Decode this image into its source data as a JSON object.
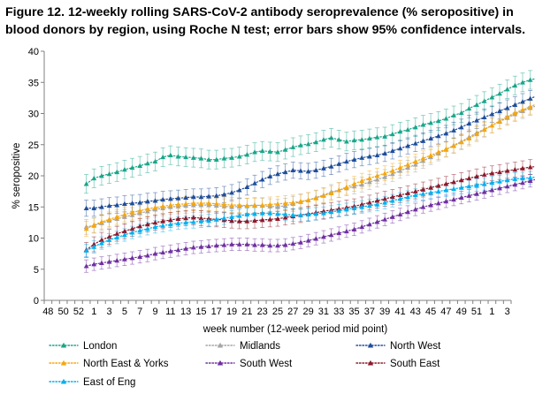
{
  "figure_title": "Figure 12. 12-weekly rolling SARS-CoV-2 antibody seroprevalence (% seropositive) in blood donors by region, using Roche N test; error bars show 95% confidence intervals.",
  "chart_data": {
    "type": "line",
    "xlabel": "week number  (12-week period mid point)",
    "ylabel": "% seropositive",
    "ylim": [
      0,
      40
    ],
    "yticks": [
      0,
      5,
      10,
      15,
      20,
      25,
      30,
      35,
      40
    ],
    "x_tick_labels": [
      "48",
      "50",
      "52",
      "1",
      "3",
      "5",
      "7",
      "9",
      "11",
      "13",
      "15",
      "17",
      "19",
      "21",
      "23",
      "25",
      "27",
      "29",
      "31",
      "33",
      "35",
      "37",
      "39",
      "41",
      "43",
      "45",
      "47",
      "49",
      "51",
      "1",
      "3"
    ],
    "x_positions_count": 61,
    "first_data_index": 5,
    "legend_position": "bottom",
    "grid": false,
    "error_bars": "95% confidence intervals",
    "series": [
      {
        "name": "London",
        "color": "#1aa68a",
        "marker": "triangle",
        "ci": 1.5,
        "values": [
          18.7,
          19.6,
          20.0,
          20.3,
          20.6,
          21.0,
          21.3,
          21.6,
          22.0,
          22.3,
          23.0,
          23.3,
          23.1,
          23.0,
          22.9,
          22.8,
          22.6,
          22.6,
          22.8,
          22.9,
          23.1,
          23.4,
          23.8,
          24.0,
          23.9,
          23.8,
          24.2,
          24.6,
          24.9,
          25.1,
          25.4,
          25.8,
          26.1,
          25.8,
          25.5,
          25.7,
          25.8,
          26.0,
          26.2,
          26.3,
          26.7,
          27.1,
          27.4,
          27.8,
          28.2,
          28.5,
          28.8,
          29.2,
          29.7,
          30.1,
          30.8,
          31.4,
          32.0,
          32.6,
          33.2,
          33.9,
          34.5,
          35.0,
          35.4,
          35.7,
          36.0
        ]
      },
      {
        "name": "Midlands",
        "color": "#a6a6a6",
        "marker": "triangle",
        "ci": 1.2,
        "values": [
          11.8,
          12.0,
          12.4,
          12.8,
          13.1,
          13.4,
          13.7,
          14.0,
          14.3,
          14.6,
          14.8,
          15.0,
          15.1,
          15.2,
          15.3,
          15.3,
          15.3,
          15.2,
          15.1,
          15.0,
          15.1,
          15.2,
          15.3,
          15.2,
          15.1,
          15.0,
          15.2,
          15.5,
          15.8,
          16.1,
          16.5,
          16.9,
          17.4,
          17.7,
          18.0,
          18.3,
          18.6,
          19.0,
          19.4,
          19.8,
          20.3,
          20.8,
          21.3,
          21.8,
          22.4,
          23.0,
          23.6,
          24.2,
          24.9,
          25.5,
          26.2,
          26.9,
          27.5,
          28.1,
          28.7,
          29.3,
          29.9,
          30.4,
          30.9,
          31.3,
          31.6
        ]
      },
      {
        "name": "North West",
        "color": "#1f4e9a",
        "marker": "triangle",
        "ci": 1.3,
        "values": [
          14.8,
          14.8,
          15.0,
          15.2,
          15.3,
          15.5,
          15.6,
          15.7,
          15.9,
          16.0,
          16.2,
          16.3,
          16.4,
          16.5,
          16.6,
          16.6,
          16.7,
          16.8,
          17.0,
          17.3,
          17.7,
          18.2,
          18.8,
          19.4,
          19.9,
          20.3,
          20.6,
          20.9,
          20.8,
          20.7,
          20.9,
          21.2,
          21.5,
          21.9,
          22.3,
          22.6,
          22.9,
          23.1,
          23.3,
          23.6,
          24.0,
          24.4,
          24.8,
          25.2,
          25.6,
          26.0,
          26.4,
          26.8,
          27.3,
          27.8,
          28.4,
          28.9,
          29.4,
          29.9,
          30.4,
          30.9,
          31.4,
          31.9,
          32.4,
          32.9,
          33.5
        ]
      },
      {
        "name": "North East & Yorks",
        "color": "#f5a70e",
        "marker": "triangle",
        "ci": 1.2,
        "values": [
          11.5,
          12.1,
          12.6,
          13.0,
          13.4,
          13.8,
          14.1,
          14.4,
          14.7,
          14.9,
          15.1,
          15.3,
          15.4,
          15.5,
          15.6,
          15.6,
          15.6,
          15.5,
          15.4,
          15.3,
          15.3,
          15.2,
          15.2,
          15.3,
          15.4,
          15.5,
          15.6,
          15.7,
          15.9,
          16.1,
          16.4,
          16.8,
          17.2,
          17.7,
          18.2,
          18.7,
          19.2,
          19.6,
          20.0,
          20.4,
          20.8,
          21.3,
          21.8,
          22.3,
          22.8,
          23.3,
          23.8,
          24.3,
          24.8,
          25.4,
          26.0,
          26.7,
          27.4,
          28.1,
          28.8,
          29.5,
          30.1,
          30.6,
          31.1,
          31.6,
          32.0
        ]
      },
      {
        "name": "South West",
        "color": "#7030a0",
        "marker": "triangle",
        "ci": 1.0,
        "values": [
          5.5,
          5.8,
          6.0,
          6.2,
          6.4,
          6.6,
          6.8,
          7.0,
          7.2,
          7.5,
          7.7,
          7.9,
          8.1,
          8.3,
          8.5,
          8.6,
          8.7,
          8.8,
          8.9,
          9.0,
          9.0,
          9.0,
          8.9,
          8.9,
          8.8,
          8.8,
          8.9,
          9.1,
          9.3,
          9.6,
          9.9,
          10.2,
          10.5,
          10.8,
          11.1,
          11.4,
          11.8,
          12.2,
          12.6,
          13.0,
          13.4,
          13.8,
          14.2,
          14.6,
          15.0,
          15.3,
          15.6,
          15.9,
          16.2,
          16.5,
          16.8,
          17.1,
          17.4,
          17.7,
          18.0,
          18.3,
          18.6,
          18.9,
          19.2,
          19.5,
          19.7
        ]
      },
      {
        "name": "South East",
        "color": "#8b1a2b",
        "marker": "triangle",
        "ci": 1.2,
        "values": [
          8.1,
          9.0,
          9.7,
          10.2,
          10.7,
          11.1,
          11.5,
          11.9,
          12.2,
          12.5,
          12.7,
          12.9,
          13.1,
          13.2,
          13.3,
          13.2,
          13.1,
          13.0,
          12.9,
          12.8,
          12.7,
          12.7,
          12.8,
          12.9,
          13.0,
          13.1,
          13.3,
          13.5,
          13.7,
          13.9,
          14.1,
          14.3,
          14.5,
          14.7,
          14.9,
          15.1,
          15.4,
          15.7,
          16.0,
          16.3,
          16.6,
          16.9,
          17.2,
          17.5,
          17.8,
          18.1,
          18.4,
          18.7,
          19.0,
          19.3,
          19.6,
          19.9,
          20.2,
          20.4,
          20.6,
          20.8,
          21.0,
          21.2,
          21.4,
          21.5,
          21.5
        ]
      },
      {
        "name": "East of Eng",
        "color": "#00b0f0",
        "marker": "triangle",
        "ci": 1.0,
        "values": [
          8.0,
          8.6,
          9.2,
          9.7,
          10.1,
          10.5,
          10.9,
          11.2,
          11.5,
          11.8,
          12.0,
          12.2,
          12.4,
          12.5,
          12.6,
          12.7,
          12.8,
          13.0,
          13.2,
          13.4,
          13.6,
          13.8,
          13.9,
          14.0,
          14.0,
          13.9,
          13.8,
          13.7,
          13.7,
          13.8,
          13.9,
          14.0,
          14.2,
          14.4,
          14.6,
          14.8,
          15.0,
          15.2,
          15.4,
          15.7,
          16.0,
          16.3,
          16.6,
          16.9,
          17.1,
          17.3,
          17.5,
          17.7,
          17.9,
          18.1,
          18.3,
          18.5,
          18.7,
          18.9,
          19.1,
          19.3,
          19.5,
          19.6,
          19.7,
          19.8,
          19.8
        ]
      }
    ]
  }
}
